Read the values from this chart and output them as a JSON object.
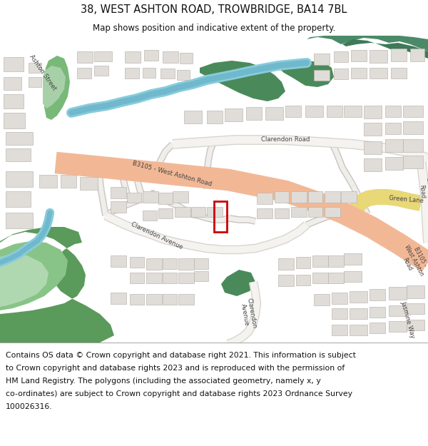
{
  "title": "38, WEST ASHTON ROAD, TROWBRIDGE, BA14 7BL",
  "subtitle": "Map shows position and indicative extent of the property.",
  "footer_lines": [
    "Contains OS data © Crown copyright and database right 2021. This information is subject",
    "to Crown copyright and database rights 2023 and is reproduced with the permission of",
    "HM Land Registry. The polygons (including the associated geometry, namely x, y",
    "co-ordinates) are subject to Crown copyright and database rights 2023 Ordnance Survey",
    "100026316."
  ],
  "map_bg": "#f2f0eb",
  "building_color": "#e0ddd8",
  "building_edge": "#c8c5c0",
  "road_main_color": "#f2b896",
  "road_yellow_color": "#e8d878",
  "green_dark": "#6aaa6a",
  "green_mid": "#88bb78",
  "green_light": "#aaccaa",
  "green_vdark": "#4a8a5a",
  "water_color": "#88ccdd",
  "water_dark": "#5599bb",
  "property_color": "#cc0000",
  "title_fontsize": 10.5,
  "subtitle_fontsize": 8.5,
  "footer_fontsize": 7.8,
  "road_label_color": "#444444",
  "road_label_size": 6.5,
  "building_outline_color": "#b0aca8"
}
